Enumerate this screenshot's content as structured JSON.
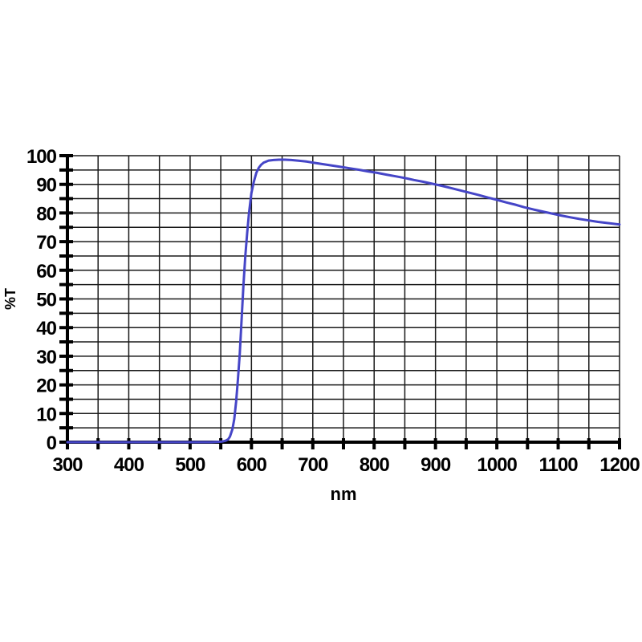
{
  "page": {
    "background": "#ffffff"
  },
  "chart_data": {
    "type": "line",
    "title": "",
    "xlabel": "nm",
    "ylabel": "%T",
    "x_range": [
      300,
      1200
    ],
    "y_range": [
      0,
      100
    ],
    "x_label_step": 100,
    "x_grid_step": 50,
    "y_label_step": 10,
    "y_grid_step": 5,
    "grid": true,
    "legend": false,
    "background": "#ffffff",
    "axis_color": "#000000",
    "grid_color": "#1a1a1a",
    "label_color": "#000000",
    "series": [
      {
        "name": "transmission",
        "color": "#4545C7",
        "points": [
          [
            300,
            0
          ],
          [
            350,
            0
          ],
          [
            400,
            0
          ],
          [
            450,
            0
          ],
          [
            500,
            0
          ],
          [
            520,
            0
          ],
          [
            535,
            0
          ],
          [
            545,
            0.1
          ],
          [
            552,
            0.2
          ],
          [
            558,
            0.5
          ],
          [
            562,
            1.0
          ],
          [
            565,
            2.0
          ],
          [
            569,
            4.5
          ],
          [
            572,
            8
          ],
          [
            575,
            14
          ],
          [
            578,
            22
          ],
          [
            581,
            31
          ],
          [
            584,
            43
          ],
          [
            587,
            55
          ],
          [
            590,
            65
          ],
          [
            593,
            73
          ],
          [
            596,
            80
          ],
          [
            600,
            87
          ],
          [
            604,
            91
          ],
          [
            608,
            94
          ],
          [
            612,
            95.8
          ],
          [
            616,
            96.9
          ],
          [
            620,
            97.6
          ],
          [
            628,
            98.3
          ],
          [
            636,
            98.5
          ],
          [
            645,
            98.6
          ],
          [
            655,
            98.6
          ],
          [
            665,
            98.5
          ],
          [
            675,
            98.3
          ],
          [
            688,
            98.0
          ],
          [
            700,
            97.6
          ],
          [
            715,
            97.1
          ],
          [
            730,
            96.6
          ],
          [
            745,
            96.1
          ],
          [
            760,
            95.6
          ],
          [
            775,
            95.1
          ],
          [
            790,
            94.5
          ],
          [
            805,
            94.0
          ],
          [
            820,
            93.4
          ],
          [
            835,
            92.8
          ],
          [
            850,
            92.2
          ],
          [
            865,
            91.5
          ],
          [
            880,
            90.9
          ],
          [
            895,
            90.2
          ],
          [
            910,
            89.5
          ],
          [
            925,
            88.7
          ],
          [
            940,
            87.9
          ],
          [
            955,
            87.1
          ],
          [
            970,
            86.3
          ],
          [
            985,
            85.4
          ],
          [
            1000,
            84.6
          ],
          [
            1015,
            83.7
          ],
          [
            1030,
            82.9
          ],
          [
            1045,
            82.0
          ],
          [
            1060,
            81.2
          ],
          [
            1075,
            80.5
          ],
          [
            1090,
            79.8
          ],
          [
            1105,
            79.1
          ],
          [
            1120,
            78.5
          ],
          [
            1135,
            77.9
          ],
          [
            1150,
            77.4
          ],
          [
            1165,
            76.9
          ],
          [
            1180,
            76.5
          ],
          [
            1200,
            76.0
          ]
        ]
      }
    ]
  }
}
